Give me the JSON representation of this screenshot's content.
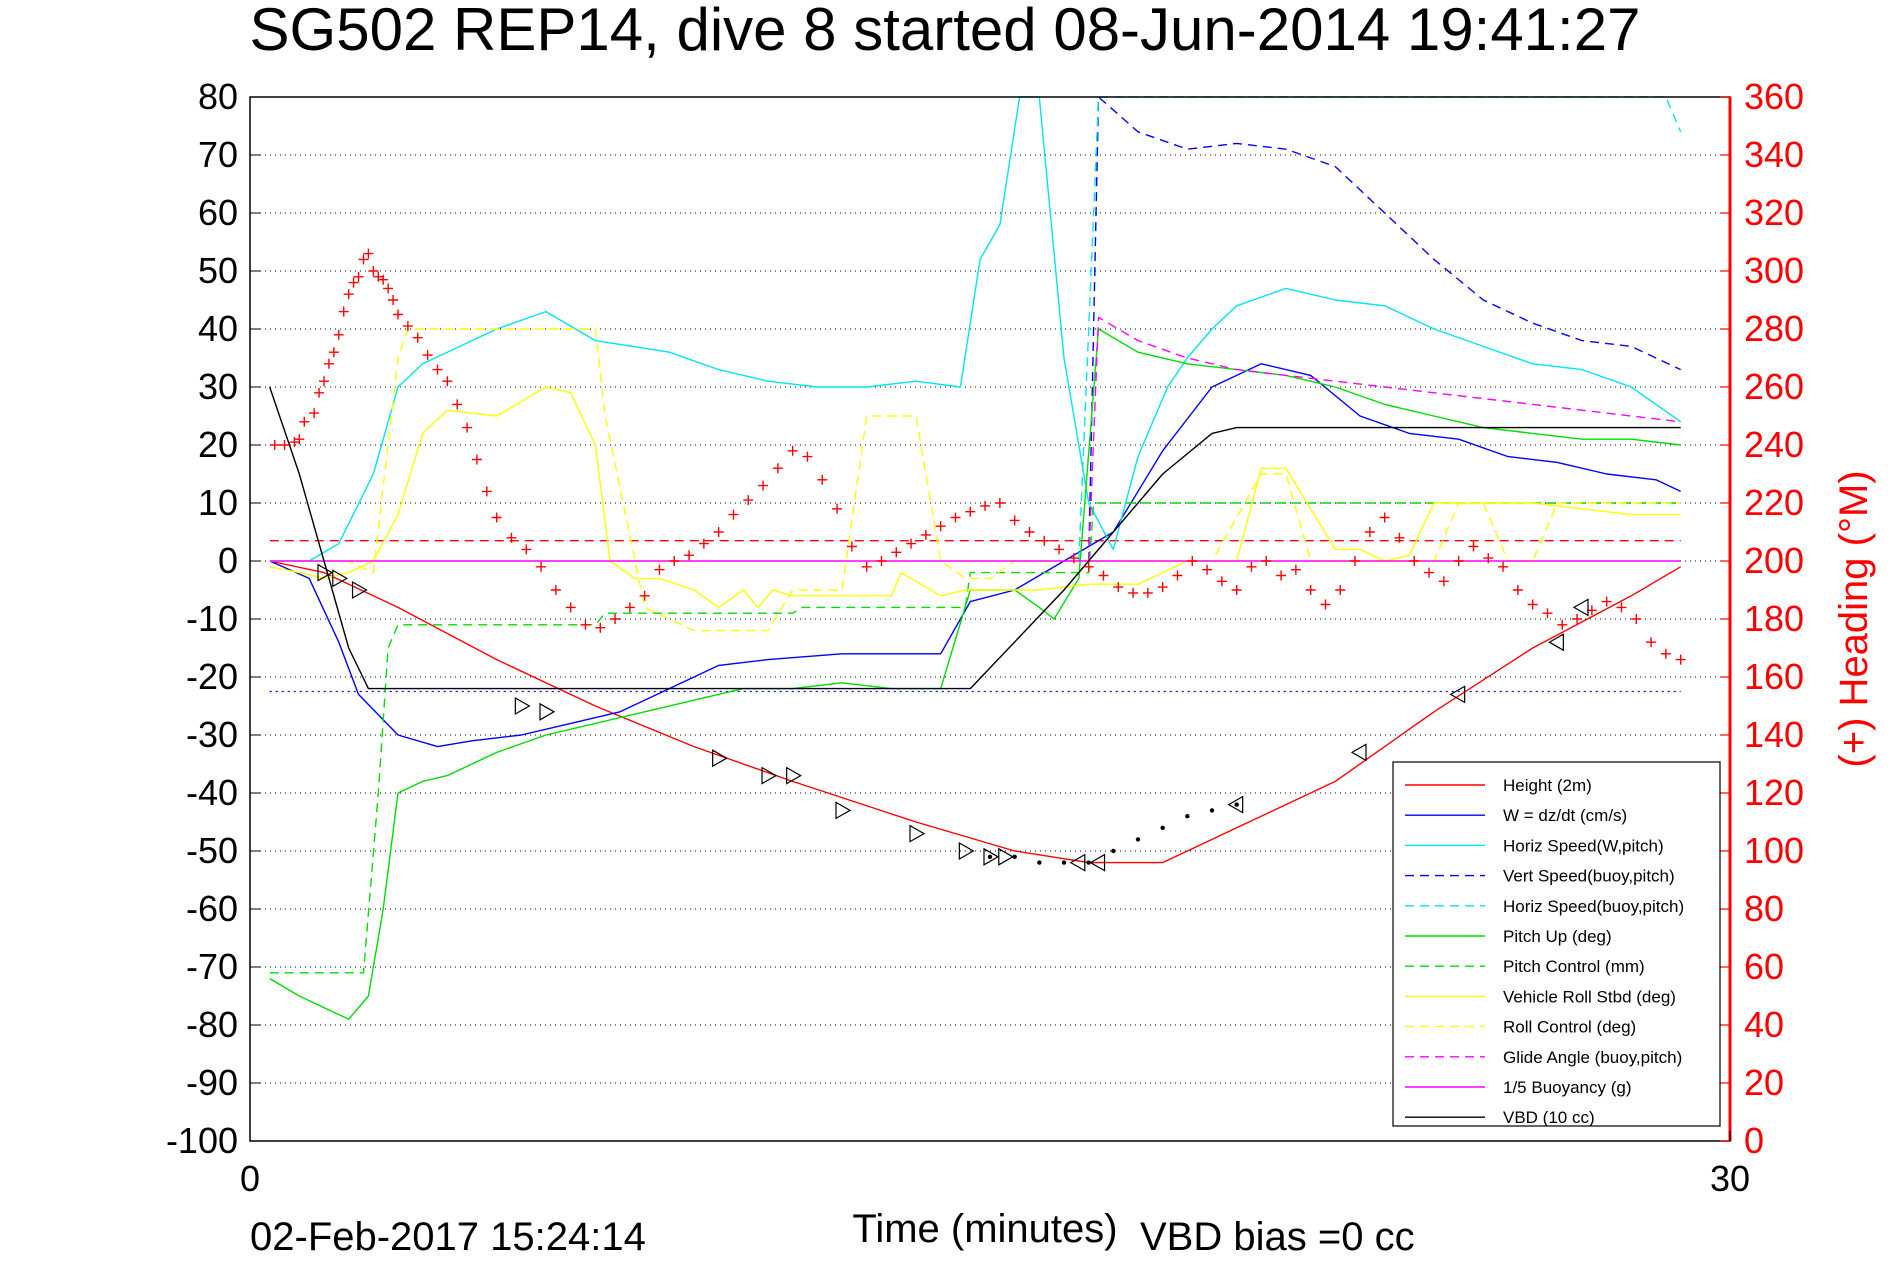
{
  "chart_data": {
    "type": "line",
    "title": "SG502 REP14, dive 8 started 08-Jun-2014 19:41:27",
    "xlabel": "Time (minutes)",
    "ylabel": "",
    "ylabel_right": "(+) Heading (°M)",
    "xlim": [
      0,
      30
    ],
    "ylim": [
      -100,
      80
    ],
    "ylim_right": [
      0,
      360
    ],
    "x_ticks": [
      "0",
      "30"
    ],
    "y_ticks": [
      "80",
      "70",
      "60",
      "50",
      "40",
      "30",
      "20",
      "10",
      "0",
      "-10",
      "-20",
      "-30",
      "-40",
      "-50",
      "-60",
      "-70",
      "-80",
      "-90",
      "-100"
    ],
    "y_ticks_right": [
      "360",
      "340",
      "320",
      "300",
      "280",
      "260",
      "240",
      "220",
      "200",
      "180",
      "160",
      "140",
      "120",
      "100",
      "80",
      "60",
      "40",
      "20",
      "0"
    ],
    "grid": true,
    "legend_position": "bottom-right",
    "footer_date": "02-Feb-2017 15:24:14",
    "footer_note": "VBD bias =0 cc",
    "colors": {
      "red": "#ff0000",
      "blue": "#0000ff",
      "cyan": "#00e5ee",
      "green": "#00dd00",
      "yellow": "#ffff00",
      "magenta": "#ff00ff",
      "black": "#000000"
    },
    "series": [
      {
        "name": "Height (2m)",
        "color": "#ff0000",
        "dash": "solid",
        "x": [
          0.4,
          1.5,
          3.0,
          5.0,
          7.0,
          9.0,
          11.0,
          13.5,
          15.5,
          17.0,
          18.5,
          20.0,
          22.0,
          24.0,
          26.0,
          28.0,
          29.0
        ],
        "y": [
          0,
          -2,
          -8,
          -17,
          -25,
          -32,
          -38,
          -45,
          -50,
          -52,
          -52,
          -46,
          -38,
          -26,
          -15,
          -6,
          -1
        ]
      },
      {
        "name": "W = dz/dt (cm/s)",
        "color": "#0000ff",
        "dash": "solid",
        "x": [
          0.4,
          1.2,
          1.8,
          2.2,
          3.0,
          3.8,
          4.5,
          5.5,
          6.5,
          7.5,
          8.5,
          9.5,
          10.5,
          12.0,
          14.0,
          14.6,
          15.5,
          16.5,
          17.5,
          18.5,
          19.5,
          20.5,
          21.5,
          22.5,
          23.5,
          24.5,
          25.5,
          26.5,
          27.5,
          28.5,
          29.0
        ],
        "y": [
          0,
          -3,
          -14,
          -23,
          -30,
          -32,
          -31,
          -30,
          -28,
          -26,
          -22,
          -18,
          -17,
          -16,
          -16,
          -7,
          -5,
          0,
          5,
          19,
          30,
          34,
          32,
          25,
          22,
          21,
          18,
          17,
          15,
          14,
          12
        ]
      },
      {
        "name": "Horiz Speed(W,pitch)",
        "color": "#00e5ee",
        "dash": "solid",
        "x": [
          0.4,
          1.2,
          1.8,
          2.5,
          3.0,
          3.5,
          4.0,
          5.0,
          6.0,
          7.0,
          8.5,
          9.5,
          10.5,
          11.5,
          12.5,
          13.5,
          14.4,
          14.8,
          15.2,
          15.6,
          16.0,
          16.5,
          17.0,
          17.5,
          18.0,
          18.6,
          19.0,
          19.5,
          20.0,
          21.0,
          22.0,
          23.0,
          24.0,
          25.0,
          26.0,
          27.0,
          28.0,
          29.0
        ],
        "y": [
          0,
          0,
          3,
          15,
          30,
          34,
          36,
          40,
          43,
          38,
          36,
          33,
          31,
          30,
          30,
          31,
          30,
          52,
          58,
          80,
          80,
          35,
          10,
          2,
          18,
          30,
          35,
          40,
          44,
          47,
          45,
          44,
          40,
          37,
          34,
          33,
          30,
          24
        ]
      },
      {
        "name": "Vert Speed(buoy,pitch)",
        "color": "#0000ff",
        "dash": "dashed",
        "x": [
          17.0,
          17.2,
          17.6,
          18.0,
          19.0,
          20.0,
          21.0,
          22.0,
          22.5,
          23.0,
          24.0,
          25.0,
          26.0,
          27.0,
          28.0,
          29.0
        ],
        "y": [
          0,
          80,
          77,
          74,
          71,
          72,
          71,
          68,
          64,
          60,
          52,
          45,
          41,
          38,
          37,
          33
        ]
      },
      {
        "name": "Horiz Speed(buoy,pitch)",
        "color": "#00e5ee",
        "dash": "dashed",
        "x": [
          16.8,
          17.0,
          17.2,
          28.7,
          29.0
        ],
        "y": [
          0,
          40,
          80,
          80,
          74
        ]
      },
      {
        "name": "Pitch Up (deg)",
        "color": "#00dd00",
        "dash": "solid",
        "x": [
          0.4,
          1.0,
          1.5,
          2.0,
          2.4,
          2.7,
          3.0,
          3.5,
          4.0,
          5.0,
          6.0,
          7.0,
          8.0,
          9.0,
          10.0,
          11.0,
          12.0,
          13.0,
          14.0,
          14.6,
          15.5,
          16.0,
          16.3,
          16.8,
          17.2,
          18.0,
          19.0,
          20.0,
          21.0,
          22.0,
          23.0,
          24.0,
          25.0,
          26.0,
          27.0,
          28.0,
          29.0
        ],
        "y": [
          -72,
          -75,
          -77,
          -79,
          -75,
          -60,
          -40,
          -38,
          -37,
          -33,
          -30,
          -28,
          -26,
          -24,
          -22,
          -22,
          -21,
          -22,
          -22,
          -5,
          -5,
          -8,
          -10,
          -3,
          40,
          36,
          34,
          33,
          32,
          30,
          27,
          25,
          23,
          22,
          21,
          21,
          20
        ]
      },
      {
        "name": "Pitch Control (mm)",
        "color": "#00dd00",
        "dash": "dashed",
        "x": [
          0.4,
          2.3,
          2.6,
          2.8,
          3.0,
          7.0,
          7.2,
          11.0,
          11.2,
          14.5,
          14.6,
          17.0,
          17.1,
          29.0
        ],
        "y": [
          -71,
          -71,
          -40,
          -15,
          -11,
          -11,
          -9,
          -9,
          -8,
          -8,
          -2,
          -2,
          10,
          10
        ]
      },
      {
        "name": "Vehicle Roll Stbd (deg)",
        "color": "#ffff00",
        "dash": "solid",
        "x": [
          0.4,
          1.0,
          1.5,
          2.0,
          2.5,
          3.0,
          3.5,
          4.0,
          5.0,
          6.0,
          6.5,
          7.0,
          7.3,
          7.8,
          8.3,
          9.0,
          9.5,
          10.0,
          10.3,
          10.6,
          11.0,
          12.0,
          13.0,
          13.2,
          14.0,
          14.5,
          15.0,
          16.0,
          17.0,
          18.0,
          19.0,
          20.0,
          20.5,
          21.0,
          22.0,
          22.5,
          23.0,
          23.5,
          24.0,
          25.0,
          26.0,
          27.0,
          28.0,
          29.0
        ],
        "y": [
          -1,
          -2,
          -3,
          -2,
          0,
          8,
          22,
          26,
          25,
          30,
          29,
          20,
          0,
          -3,
          -3,
          -5,
          -8,
          -5,
          -8,
          -5,
          -6,
          -6,
          -6,
          -2,
          -6,
          -5,
          -5,
          -5,
          -4,
          -4,
          0,
          0,
          16,
          16,
          2,
          2,
          0,
          1,
          10,
          10,
          10,
          9,
          8,
          8
        ]
      },
      {
        "name": "Roll Control (deg)",
        "color": "#ffff00",
        "dash": "dashed",
        "x": [
          0.4,
          2.0,
          2.5,
          3.0,
          3.2,
          7.0,
          7.2,
          8.0,
          9.0,
          10.5,
          11.0,
          11.5,
          12.0,
          12.5,
          13.5,
          14.0,
          14.5,
          15.0,
          15.5,
          16.0,
          17.0,
          17.5,
          18.5,
          19.0,
          19.5,
          20.5,
          21.0,
          21.5,
          22.5,
          23.0,
          24.0,
          24.5,
          25.0,
          25.5,
          26.0,
          26.5,
          27.0,
          28.0,
          29.0
        ],
        "y": [
          0,
          0,
          -2,
          35,
          40,
          40,
          25,
          -8,
          -12,
          -12,
          -5,
          -5,
          -5,
          25,
          25,
          0,
          -3,
          -3,
          0,
          0,
          0,
          0,
          0,
          0,
          0,
          15,
          15,
          0,
          0,
          0,
          0,
          10,
          10,
          0,
          0,
          10,
          10,
          10,
          10
        ]
      },
      {
        "name": "Glide Angle (buoy,pitch)",
        "color": "#ff00ff",
        "dash": "dashed",
        "x": [
          17.0,
          17.2,
          18.0,
          19.0,
          20.0,
          21.0,
          22.0,
          23.0,
          24.0,
          25.0,
          26.0,
          27.0,
          28.0,
          29.0
        ],
        "y": [
          0,
          42,
          38,
          35,
          33,
          32,
          31,
          30,
          29,
          28,
          27,
          26,
          25,
          24
        ]
      },
      {
        "name": "1/5 Buoyancy (g)",
        "color": "#ff00ff",
        "dash": "solid",
        "x": [
          0.4,
          29.0
        ],
        "y": [
          0,
          0
        ]
      },
      {
        "name": "VBD (10 cc)",
        "color": "#000000",
        "dash": "solid",
        "x": [
          0.4,
          1.0,
          1.5,
          2.0,
          2.4,
          2.8,
          3.0,
          14.6,
          16.5,
          17.5,
          18.5,
          19.5,
          20.0,
          29.0
        ],
        "y": [
          30,
          15,
          0,
          -15,
          -22,
          -22,
          -22,
          -22,
          -5,
          5,
          15,
          22,
          23,
          23
        ]
      }
    ],
    "reference_lines": [
      {
        "axis": "y",
        "value": 3.5,
        "color": "#ff0000",
        "dash": "dashed"
      },
      {
        "axis": "y",
        "value": -22.5,
        "color": "#0000ff",
        "dash": "dotted"
      }
    ],
    "heading_series": {
      "axis": "right",
      "color": "#ff0000",
      "marker": "+",
      "x": [
        0.5,
        0.7,
        0.9,
        1.0,
        1.1,
        1.3,
        1.4,
        1.5,
        1.6,
        1.7,
        1.8,
        1.9,
        2.0,
        2.1,
        2.2,
        2.3,
        2.4,
        2.5,
        2.6,
        2.7,
        2.8,
        2.9,
        3.0,
        3.2,
        3.4,
        3.6,
        3.8,
        4.0,
        4.2,
        4.4,
        4.6,
        4.8,
        5.0,
        5.3,
        5.6,
        5.9,
        6.2,
        6.5,
        6.8,
        7.1,
        7.4,
        7.7,
        8.0,
        8.3,
        8.6,
        8.9,
        9.2,
        9.5,
        9.8,
        10.1,
        10.4,
        10.7,
        11.0,
        11.3,
        11.6,
        11.9,
        12.2,
        12.5,
        12.8,
        13.1,
        13.4,
        13.7,
        14.0,
        14.3,
        14.6,
        14.9,
        15.2,
        15.5,
        15.8,
        16.1,
        16.4,
        16.7,
        17.0,
        17.3,
        17.6,
        17.9,
        18.2,
        18.5,
        18.8,
        19.1,
        19.4,
        19.7,
        20.0,
        20.3,
        20.6,
        20.9,
        21.2,
        21.5,
        21.8,
        22.1,
        22.4,
        22.7,
        23.0,
        23.3,
        23.6,
        23.9,
        24.2,
        24.5,
        24.8,
        25.1,
        25.4,
        25.7,
        26.0,
        26.3,
        26.6,
        26.9,
        27.2,
        27.5,
        27.8,
        28.1,
        28.4,
        28.7,
        29.0
      ],
      "y": [
        240,
        240,
        241,
        242,
        248,
        251,
        258,
        262,
        268,
        272,
        278,
        286,
        292,
        296,
        298,
        304,
        306,
        300,
        298,
        297,
        294,
        290,
        285,
        281,
        277,
        271,
        266,
        262,
        254,
        246,
        235,
        224,
        215,
        208,
        204,
        198,
        190,
        184,
        178,
        177,
        180,
        184,
        188,
        197,
        200,
        202,
        206,
        210,
        216,
        221,
        226,
        232,
        238,
        236,
        228,
        218,
        205,
        198,
        200,
        203,
        206,
        209,
        212,
        215,
        217,
        219,
        220,
        214,
        210,
        207,
        204,
        201,
        198,
        195,
        191,
        189,
        189,
        191,
        195,
        200,
        197,
        193,
        190,
        198,
        200,
        195,
        197,
        190,
        185,
        190,
        200,
        210,
        215,
        208,
        200,
        196,
        193,
        200,
        205,
        201,
        198,
        190,
        185,
        182,
        178,
        180,
        183,
        186,
        184,
        180,
        172,
        168,
        166
      ]
    },
    "waypoint_markers": {
      "color": "#000000",
      "x": [
        1.5,
        1.8,
        2.2,
        5.5,
        6.0,
        9.5,
        10.5,
        11.0,
        12.0,
        13.5,
        14.5,
        15.0,
        15.3,
        16.8,
        17.2,
        20.0,
        22.5,
        24.5,
        26.5,
        27.0
      ],
      "y": [
        -2,
        -3,
        -5,
        -25,
        -26,
        -34,
        -37,
        -37,
        -43,
        -47,
        -50,
        -51,
        -51,
        -52,
        -52,
        -42,
        -33,
        -23,
        -14,
        -8
      ]
    },
    "surface_dots": {
      "x": [
        15.0,
        15.5,
        16.0,
        16.5,
        17.0,
        17.5,
        18.0,
        18.5,
        19.0,
        19.5,
        20.0
      ],
      "y": [
        -51,
        -51,
        -52,
        -52,
        -52,
        -50,
        -48,
        -46,
        -44,
        -43,
        -42
      ]
    }
  }
}
